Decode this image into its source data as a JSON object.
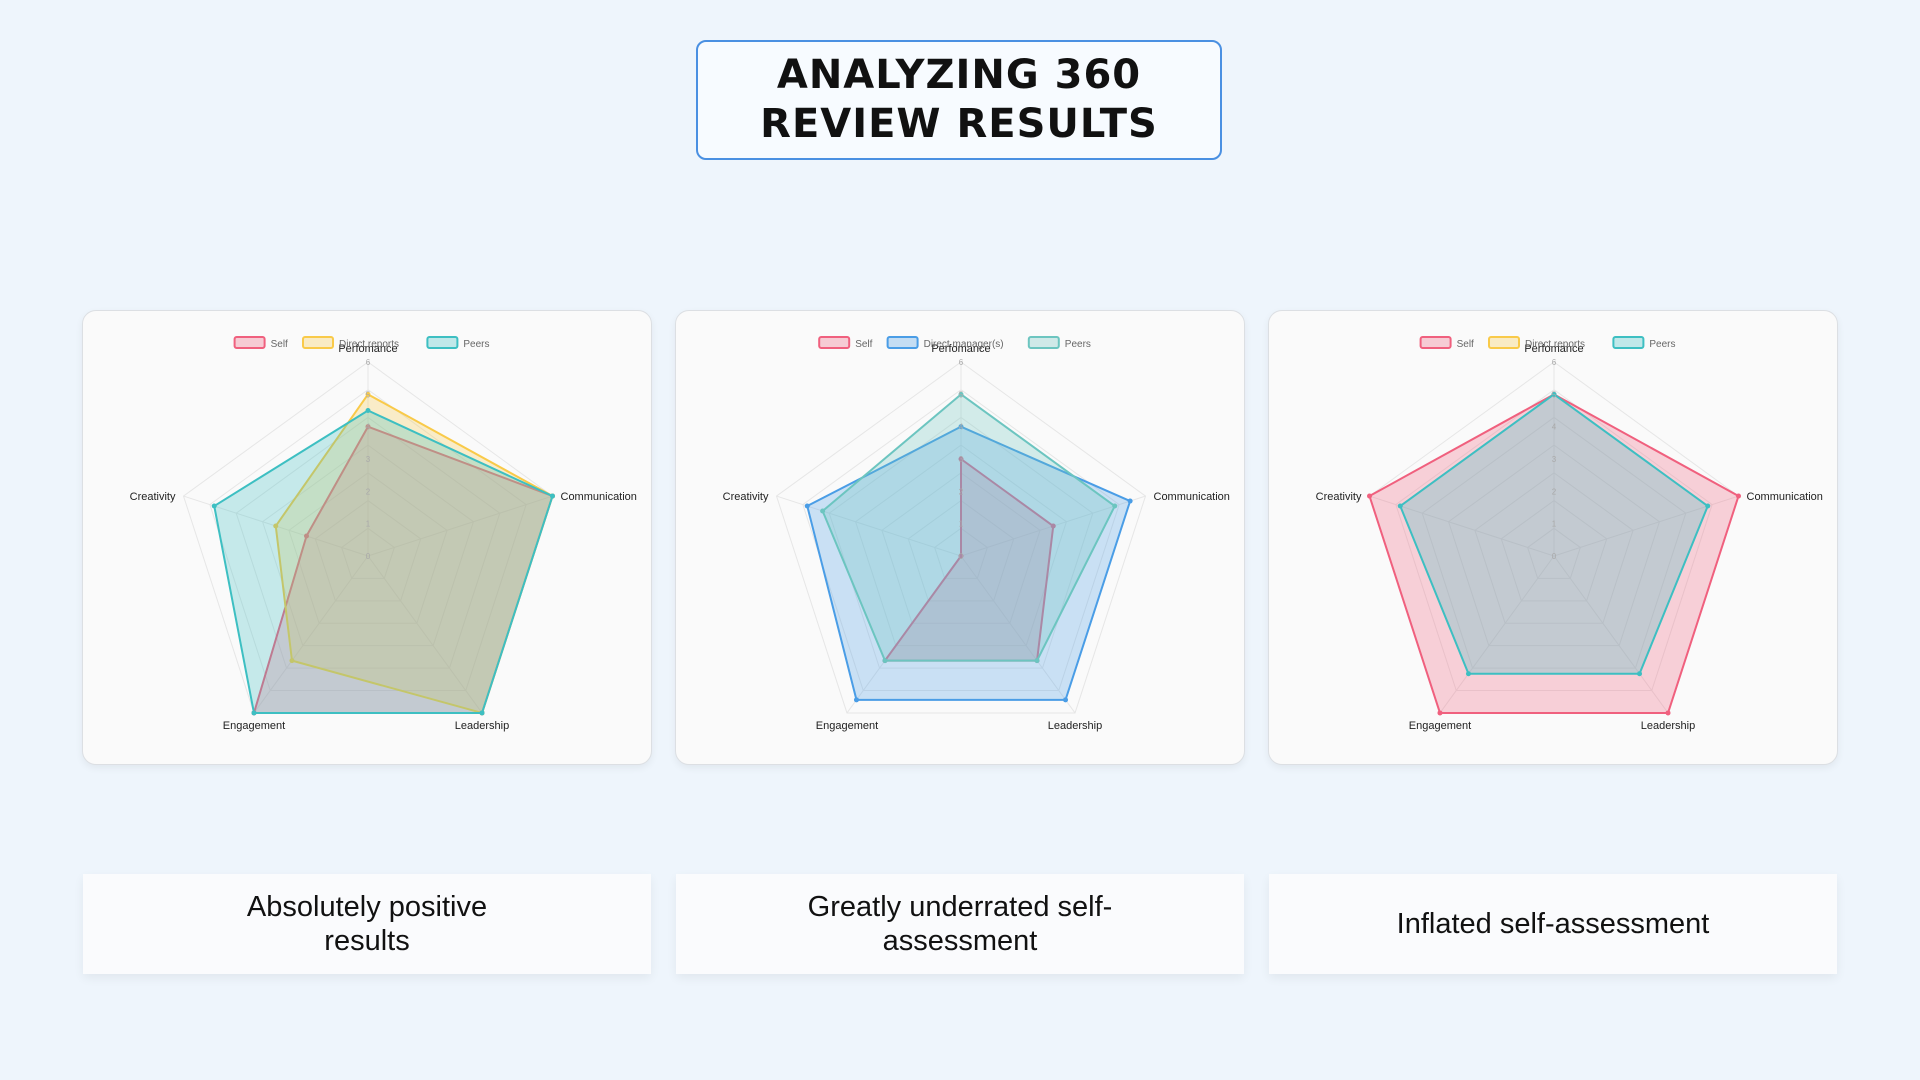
{
  "page": {
    "title_line1": "ANALYZING 360",
    "title_line2": "REVIEW RESULTS"
  },
  "chart_data": [
    {
      "type": "radar",
      "axes": [
        "Perfomance",
        "Communication",
        "Leadership",
        "Engagement",
        "Creativity"
      ],
      "ticks": [
        0,
        1,
        2,
        3,
        4,
        5,
        6
      ],
      "rmax": 6,
      "grid": true,
      "legend_position": "top",
      "series": [
        {
          "name": "Self",
          "color": "#f0607e",
          "values": [
            4,
            6,
            6,
            6,
            2
          ]
        },
        {
          "name": "Direct reports",
          "color": "#f9ca49",
          "values": [
            5,
            6,
            6,
            4,
            3
          ]
        },
        {
          "name": "Peers",
          "color": "#3dbfc2",
          "values": [
            4.5,
            6,
            6,
            6,
            5
          ]
        }
      ],
      "caption": "Absolutely positive results"
    },
    {
      "type": "radar",
      "axes": [
        "Perfomance",
        "Communication",
        "Leadership",
        "Engagement",
        "Creativity"
      ],
      "ticks": [
        0,
        1,
        2,
        3,
        4,
        5,
        6
      ],
      "rmax": 6,
      "grid": true,
      "legend_position": "top",
      "series": [
        {
          "name": "Self",
          "color": "#f0607e",
          "values": [
            3,
            3,
            4,
            4,
            0
          ]
        },
        {
          "name": "Direct manager(s)",
          "color": "#4a9de6",
          "values": [
            4,
            5.5,
            5.5,
            5.5,
            5
          ]
        },
        {
          "name": "Peers",
          "color": "#6cc5c0",
          "values": [
            5,
            5,
            4,
            4,
            4.5
          ]
        }
      ],
      "caption": "Greatly underrated self-assessment"
    },
    {
      "type": "radar",
      "axes": [
        "Perfomance",
        "Communication",
        "Leadership",
        "Engagement",
        "Creativity"
      ],
      "ticks": [
        0,
        1,
        2,
        3,
        4,
        5,
        6
      ],
      "rmax": 6,
      "grid": true,
      "legend_position": "top",
      "series": [
        {
          "name": "Self",
          "color": "#f0607e",
          "values": [
            5,
            6,
            6,
            6,
            6
          ]
        },
        {
          "name": "Direct reports",
          "color": "#f9ca49",
          "values": []
        },
        {
          "name": "Peers",
          "color": "#3dbfc2",
          "values": [
            5,
            5,
            4.5,
            4.5,
            5
          ]
        }
      ],
      "caption": "Inflated self-assessment"
    }
  ]
}
